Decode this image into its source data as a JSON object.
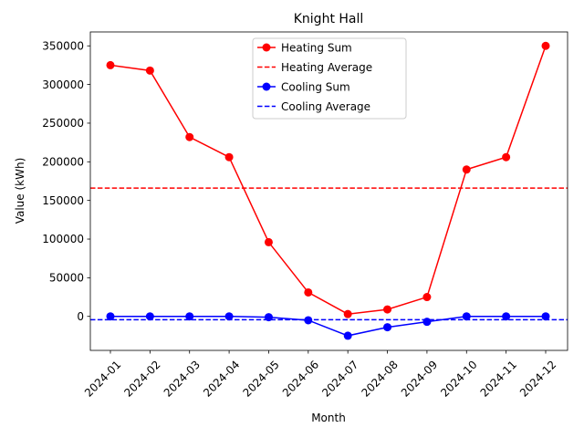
{
  "chart_data": {
    "type": "line",
    "title": "Knight Hall",
    "xlabel": "Month",
    "ylabel": "Value (kWh)",
    "categories": [
      "2024-01",
      "2024-02",
      "2024-03",
      "2024-04",
      "2024-05",
      "2024-06",
      "2024-07",
      "2024-08",
      "2024-09",
      "2024-10",
      "2024-11",
      "2024-12"
    ],
    "ylim": [
      -44000,
      368000
    ],
    "yticks": [
      0,
      50000,
      100000,
      150000,
      200000,
      250000,
      300000,
      350000
    ],
    "ytick_labels": [
      "0",
      "50000",
      "100000",
      "150000",
      "200000",
      "250000",
      "300000",
      "350000"
    ],
    "grid": false,
    "legend_position": "top-center",
    "series": [
      {
        "name": "Heating Sum",
        "style": "solid-marker",
        "color": "#ff0000",
        "values": [
          325000,
          318000,
          232000,
          206000,
          96000,
          31000,
          3000,
          9000,
          25000,
          190000,
          206000,
          350000
        ]
      },
      {
        "name": "Cooling Sum",
        "style": "solid-marker",
        "color": "#0000ff",
        "values": [
          0,
          0,
          0,
          0,
          -1000,
          -5000,
          -25000,
          -14000,
          -7000,
          0,
          0,
          0
        ]
      }
    ],
    "reference_lines": [
      {
        "name": "Heating Average",
        "style": "dashed",
        "color": "#ff0000",
        "value": 166000
      },
      {
        "name": "Cooling Average",
        "style": "dashed",
        "color": "#0000ff",
        "value": -4300
      }
    ],
    "legend": [
      {
        "label": "Heating Sum",
        "style": "solid-marker",
        "color": "#ff0000"
      },
      {
        "label": "Heating Average",
        "style": "dashed",
        "color": "#ff0000"
      },
      {
        "label": "Cooling Sum",
        "style": "solid-marker",
        "color": "#0000ff"
      },
      {
        "label": "Cooling Average",
        "style": "dashed",
        "color": "#0000ff"
      }
    ]
  }
}
